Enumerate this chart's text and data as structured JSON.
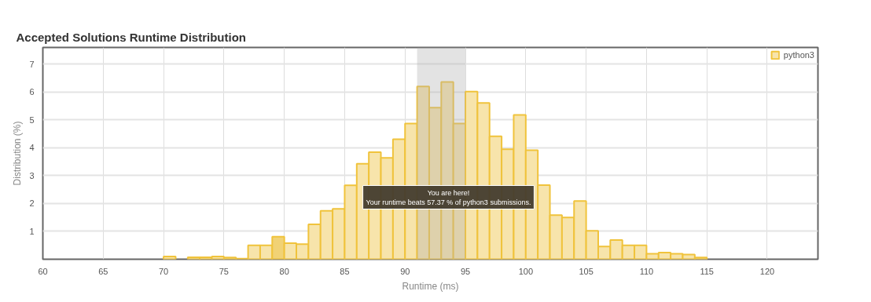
{
  "chart_data": {
    "type": "histogram",
    "title": "Accepted Solutions Runtime Distribution",
    "xlabel": "Runtime (ms)",
    "ylabel": "Distribution (%)",
    "bins": [
      70,
      71,
      72,
      73,
      74,
      75,
      76,
      77,
      78,
      79,
      80,
      81,
      82,
      83,
      84,
      85,
      86,
      87,
      88,
      89,
      90,
      91,
      92,
      93,
      94,
      95,
      96,
      97,
      98,
      99,
      100,
      101,
      102,
      103,
      104,
      105,
      106,
      107,
      108,
      109,
      110,
      111,
      112,
      113,
      114,
      115
    ],
    "series": [
      {
        "name": "python3",
        "color": "#f0c33c",
        "values": [
          0.1,
          null,
          0.07,
          0.07,
          0.1,
          0.06,
          0.02,
          0.5,
          0.5,
          0.81,
          0.58,
          0.54,
          1.25,
          1.74,
          1.81,
          2.65,
          3.43,
          3.84,
          3.64,
          4.31,
          4.87,
          6.2,
          5.44,
          6.36,
          4.87,
          6.02,
          5.61,
          4.41,
          3.95,
          5.18,
          3.91,
          2.66,
          1.58,
          1.5,
          2.09,
          1.02,
          0.46,
          0.69,
          0.5,
          0.5,
          0.2,
          0.24,
          0.2,
          0.17,
          0.06
        ],
        "colors": [
          "#f7e4ab",
          "#f7e4ab",
          "#f7e4ab",
          "#f7e4ab",
          "#f7e4ab",
          "#f7e4ab",
          "#f7e4ab",
          "#f7e4ab",
          "#f7e4ab",
          "#f1d275",
          "#f7e4ab",
          "#f7e4ab",
          "#f7e4ab",
          "#f7e4ab",
          "#f7e4ab",
          "#f7e4ab",
          "#f7e4ab",
          "#f7e4ab",
          "#f7e4ab",
          "#f7e4ab",
          "#f7e4ab",
          "#f7e4ab",
          "#f7e4ab",
          "#f7e4ab",
          "#f7e4ab",
          "#f7e4ab",
          "#f7e4ab",
          "#f7e4ab",
          "#f7e4ab",
          "#f7e4ab",
          "#f7e4ab",
          "#f7e4ab",
          "#f7e4ab",
          "#f7e4ab",
          "#f7e4ab",
          "#f7e4ab",
          "#f7e4ab",
          "#f7e4ab",
          "#f7e4ab",
          "#f7e4ab",
          "#f7e4ab",
          "#f7e4ab",
          "#f7e4ab",
          "#f7e4ab",
          "#f7e4ab"
        ]
      }
    ],
    "bands": [
      {
        "axis": "x",
        "from": 91,
        "to": 95,
        "color": "#b0b0b0"
      }
    ],
    "annotations": [
      "You are here!\nYour runtime beats 57.37 % of python3 submissions."
    ],
    "xlim": [
      60,
      124.2
    ],
    "ylim": [
      0,
      7.6
    ],
    "xticks": [
      60,
      65,
      70,
      75,
      80,
      85,
      90,
      95,
      100,
      105,
      110,
      115,
      120
    ],
    "yticks": [
      1,
      2,
      3,
      4,
      5,
      6,
      7
    ],
    "grid": true,
    "legend": "top right"
  }
}
